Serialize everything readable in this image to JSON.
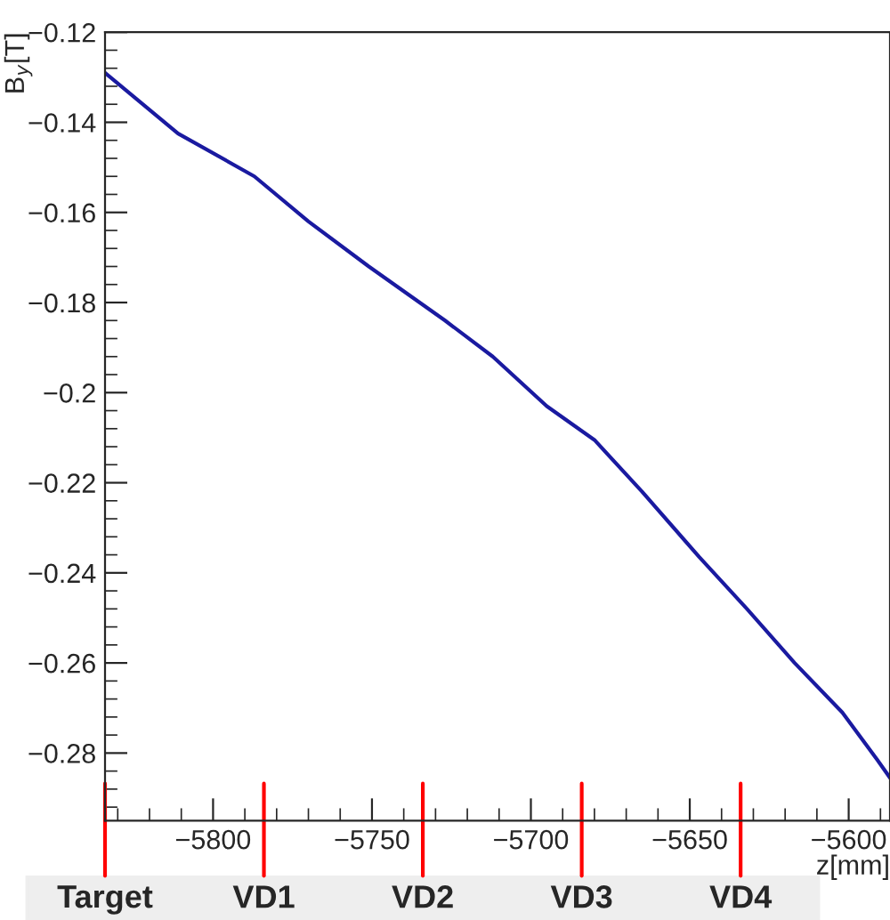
{
  "chart_data": {
    "type": "line",
    "ylabel": "B$_{y}$[T]",
    "xlabel": "z[mm]",
    "x": [
      -5834,
      -5811,
      -5787,
      -5770,
      -5751,
      -5727,
      -5712,
      -5695,
      -5680,
      -5665,
      -5647,
      -5632,
      -5617,
      -5602,
      -5591,
      -5587
    ],
    "series": [
      {
        "color": "#1a1aa0",
        "values": [
          -0.129,
          -0.1425,
          -0.152,
          -0.162,
          -0.172,
          -0.184,
          -0.192,
          -0.203,
          -0.2105,
          -0.222,
          -0.2365,
          -0.248,
          -0.26,
          -0.271,
          -0.2815,
          -0.2855
        ]
      }
    ],
    "xlim": [
      -5834,
      -5587
    ],
    "ylim": [
      -0.295,
      -0.12
    ],
    "xticks": [
      {
        "value": -5800,
        "label": "−5800"
      },
      {
        "value": -5750,
        "label": "−5750"
      },
      {
        "value": -5700,
        "label": "−5700"
      },
      {
        "value": -5650,
        "label": "−5650"
      },
      {
        "value": -5600,
        "label": "−5600"
      }
    ],
    "yticks": [
      {
        "value": -0.28,
        "label": "−0.28"
      },
      {
        "value": -0.26,
        "label": "−0.26"
      },
      {
        "value": -0.24,
        "label": "−0.24"
      },
      {
        "value": -0.22,
        "label": "−0.22"
      },
      {
        "value": -0.2,
        "label": "−0.2"
      },
      {
        "value": -0.18,
        "label": "−0.18"
      },
      {
        "value": -0.16,
        "label": "−0.16"
      },
      {
        "value": -0.14,
        "label": "−0.14"
      },
      {
        "value": -0.12,
        "label": "−0.12"
      }
    ],
    "ref_lines": [
      {
        "axis": "x",
        "value": -5834,
        "label": "Target",
        "color": "#ff0000"
      },
      {
        "axis": "x",
        "value": -5784,
        "label": "VD1",
        "color": "#ff0000"
      },
      {
        "axis": "x",
        "value": -5734,
        "label": "VD2",
        "color": "#ff0000"
      },
      {
        "axis": "x",
        "value": -5684,
        "label": "VD3",
        "color": "#ff0000"
      },
      {
        "axis": "x",
        "value": -5634,
        "label": "VD4",
        "color": "#ff0000"
      }
    ],
    "grid": false,
    "legend": false,
    "marker": "none",
    "line_style": "solid"
  }
}
